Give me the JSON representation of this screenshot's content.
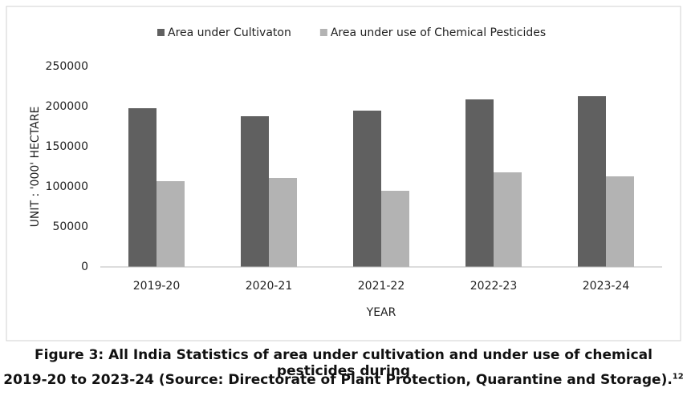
{
  "chart_data": {
    "type": "bar",
    "categories": [
      "2019-20",
      "2020-21",
      "2021-22",
      "2022-23",
      "2023-24"
    ],
    "series": [
      {
        "name": "Area under Cultivaton",
        "color": "#606060",
        "values": [
          198000,
          188000,
          195000,
          209000,
          213000
        ]
      },
      {
        "name": "Area under use of Chemical Pesticides",
        "color": "#b3b3b3",
        "values": [
          107000,
          111000,
          95000,
          118000,
          113000
        ]
      }
    ],
    "ylim": [
      0,
      250000
    ],
    "yticks": [
      0,
      50000,
      100000,
      150000,
      200000,
      250000
    ],
    "ylabel": "UNIT : '000' HECTARE",
    "xlabel": "YEAR",
    "legend": "top",
    "grid": false
  },
  "caption": {
    "lines": [
      "Figure 3: All India Statistics of area under cultivation and under use of chemical pesticides during",
      "2019-20 to 2023-24 (Source: Directorate of Plant Protection, Quarantine and Storage)."
    ],
    "reference": "12"
  }
}
